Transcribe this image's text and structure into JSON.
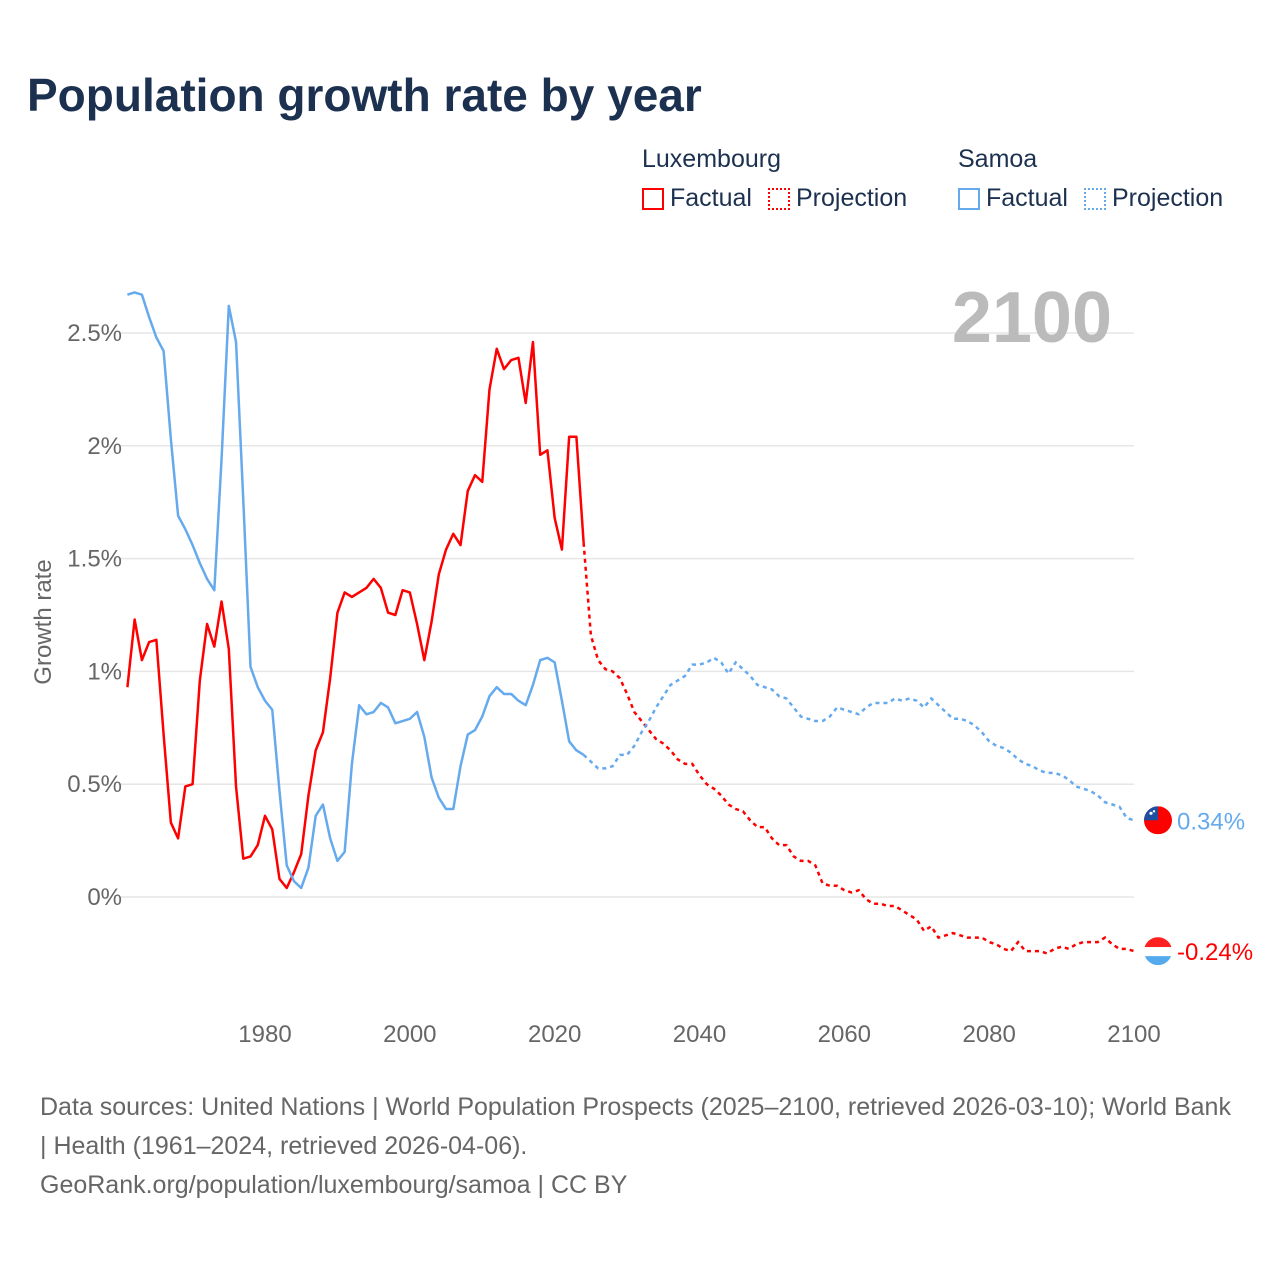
{
  "title": "Population growth rate by year",
  "legend": [
    {
      "name": "Luxembourg",
      "color": "#ff0000",
      "factual_label": "Factual",
      "projection_label": "Projection"
    },
    {
      "name": "Samoa",
      "color": "#66aaee",
      "factual_label": "Factual",
      "projection_label": "Projection"
    }
  ],
  "year_label": "2100",
  "footer": {
    "sources": "Data sources: United Nations | World Population Prospects (2025–2100, retrieved 2026-03-10); World Bank | Health (1961–2024, retrieved 2026-04-06).",
    "url": "GeoRank.org/population/luxembourg/samoa | CC BY"
  },
  "chart_data": {
    "type": "line",
    "title": "Population growth rate by year",
    "xlabel": "",
    "ylabel": "Growth rate",
    "xlim": [
      1961,
      2100
    ],
    "ylim": [
      -0.35,
      2.75
    ],
    "x_ticks": [
      1980,
      2000,
      2020,
      2040,
      2060,
      2080,
      2100
    ],
    "y_ticks": [
      0,
      0.5,
      1,
      1.5,
      2,
      2.5
    ],
    "y_tick_labels": [
      "0%",
      "0.5%",
      "1%",
      "1.5%",
      "2%",
      "2.5%"
    ],
    "grid": true,
    "legend_position": "top-right",
    "factual_start": 1961,
    "projection_start": 2025,
    "series": [
      {
        "name": "Luxembourg",
        "color": "#ff0000",
        "end_label": "-0.24%",
        "factual": [
          0.93,
          1.23,
          1.05,
          1.13,
          1.14,
          0.72,
          0.33,
          0.26,
          0.49,
          0.5,
          0.96,
          1.21,
          1.11,
          1.31,
          1.1,
          0.49,
          0.17,
          0.18,
          0.23,
          0.36,
          0.3,
          0.08,
          0.04,
          0.11,
          0.19,
          0.45,
          0.65,
          0.73,
          0.97,
          1.26,
          1.35,
          1.33,
          1.35,
          1.37,
          1.41,
          1.37,
          1.26,
          1.25,
          1.36,
          1.35,
          1.21,
          1.05,
          1.22,
          1.43,
          1.54,
          1.61,
          1.56,
          1.8,
          1.87,
          1.84,
          2.25,
          2.43,
          2.34,
          2.38,
          2.39,
          2.19,
          2.46,
          1.96,
          1.98,
          1.68,
          1.54,
          2.04,
          2.04,
          1.57
        ],
        "projection": [
          1.16,
          1.05,
          1.01,
          1.0,
          0.97,
          0.9,
          0.82,
          0.78,
          0.74,
          0.7,
          0.68,
          0.65,
          0.61,
          0.59,
          0.59,
          0.54,
          0.5,
          0.48,
          0.45,
          0.41,
          0.39,
          0.38,
          0.34,
          0.31,
          0.31,
          0.26,
          0.23,
          0.23,
          0.18,
          0.16,
          0.16,
          0.14,
          0.06,
          0.05,
          0.05,
          0.03,
          0.02,
          0.03,
          -0.01,
          -0.03,
          -0.03,
          -0.04,
          -0.04,
          -0.06,
          -0.08,
          -0.1,
          -0.15,
          -0.13,
          -0.18,
          -0.17,
          -0.16,
          -0.17,
          -0.18,
          -0.18,
          -0.18,
          -0.2,
          -0.21,
          -0.23,
          -0.24,
          -0.2,
          -0.24,
          -0.24,
          -0.24,
          -0.25,
          -0.23,
          -0.22,
          -0.23,
          -0.21,
          -0.2,
          -0.2,
          -0.2,
          -0.18,
          -0.21,
          -0.23,
          -0.23,
          -0.24
        ]
      },
      {
        "name": "Samoa",
        "color": "#66aaee",
        "end_label": "0.34%",
        "factual": [
          2.67,
          2.68,
          2.67,
          2.57,
          2.48,
          2.42,
          2.03,
          1.69,
          1.63,
          1.56,
          1.48,
          1.41,
          1.36,
          1.94,
          2.62,
          2.46,
          1.76,
          1.02,
          0.93,
          0.87,
          0.83,
          0.47,
          0.14,
          0.07,
          0.04,
          0.13,
          0.36,
          0.41,
          0.26,
          0.16,
          0.2,
          0.59,
          0.85,
          0.81,
          0.82,
          0.86,
          0.84,
          0.77,
          0.78,
          0.79,
          0.82,
          0.71,
          0.53,
          0.44,
          0.39,
          0.39,
          0.58,
          0.72,
          0.74,
          0.8,
          0.89,
          0.93,
          0.9,
          0.9,
          0.87,
          0.85,
          0.94,
          1.05,
          1.06,
          1.04,
          0.87,
          0.69,
          0.65,
          0.63
        ],
        "projection": [
          0.6,
          0.57,
          0.57,
          0.58,
          0.63,
          0.63,
          0.67,
          0.73,
          0.78,
          0.84,
          0.89,
          0.94,
          0.96,
          0.98,
          1.03,
          1.03,
          1.04,
          1.06,
          1.04,
          0.99,
          1.04,
          1.01,
          0.98,
          0.94,
          0.93,
          0.92,
          0.89,
          0.88,
          0.84,
          0.8,
          0.79,
          0.78,
          0.78,
          0.8,
          0.84,
          0.83,
          0.82,
          0.81,
          0.84,
          0.86,
          0.86,
          0.86,
          0.88,
          0.87,
          0.88,
          0.87,
          0.84,
          0.88,
          0.85,
          0.82,
          0.79,
          0.79,
          0.78,
          0.76,
          0.73,
          0.69,
          0.67,
          0.66,
          0.64,
          0.61,
          0.59,
          0.58,
          0.56,
          0.55,
          0.55,
          0.54,
          0.52,
          0.49,
          0.48,
          0.47,
          0.45,
          0.42,
          0.41,
          0.4,
          0.35,
          0.34
        ]
      }
    ]
  }
}
